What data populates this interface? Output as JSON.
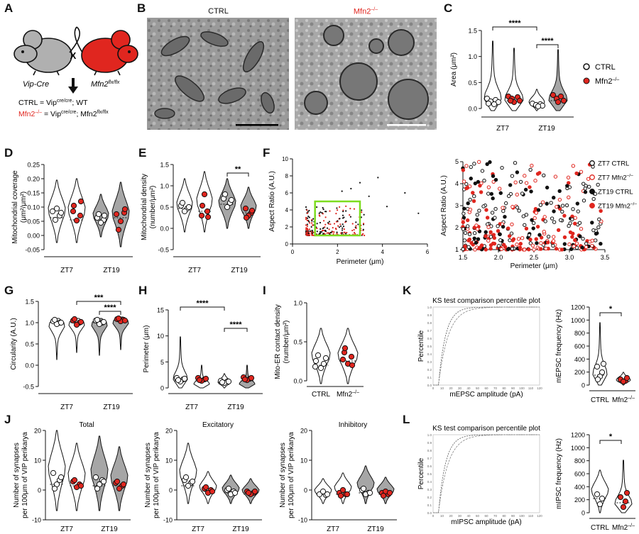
{
  "panel_labels": {
    "A": "A",
    "B": "B",
    "C": "C",
    "D": "D",
    "E": "E",
    "F": "F",
    "G": "G",
    "H": "H",
    "I": "I",
    "J": "J",
    "K": "K",
    "L": "L"
  },
  "panel_a": {
    "mouse_left_label": "Vip-Cre",
    "mouse_right_label": "Mfn2",
    "mouse_right_sup": "flx/flx",
    "cross": "X",
    "ctrl_line": "CTRL = Vip",
    "ctrl_sup": "cre/cre",
    "ctrl_rest": "; WT",
    "mfn_line_name": "Mfn2",
    "mfn_line_sup": "–/–",
    "mfn_line_eq": " = Vip",
    "mfn_line_sup2": "cre/cre",
    "mfn_line_rest": "; Mfn2",
    "mfn_line_sup3": "flx/flx"
  },
  "panel_b": {
    "ctrl_title": "CTRL",
    "mfn_title": "Mfn2",
    "mfn_sup": "–/–"
  },
  "colors": {
    "red": "#e0261f",
    "black": "#111111",
    "gray": "#a6a6a6",
    "green": "#7ddc1f",
    "light": "#cfcfcf"
  },
  "legend_c": {
    "ctrl": "CTRL",
    "mfn": "Mfn2",
    "mfn_sup": "–/–"
  },
  "legend_f": [
    "ZT7 CTRL",
    "ZT7 Mfn2",
    "ZT19 CTRL",
    "ZT19 Mfn2"
  ],
  "legend_f_sup": "–/–",
  "violin_panels": {
    "C": {
      "ylabel": "Area (μm²)",
      "ticks": [
        "1.5",
        "1.0",
        "0.5",
        "0.0"
      ],
      "groups": [
        "ZT7",
        "ZT19"
      ],
      "sig": [
        "****",
        "****"
      ]
    },
    "D": {
      "ylabel1": "Mitochondrial coverage",
      "ylabel2": "(μm²/μm²)",
      "ticks": [
        "0.25",
        "0.20",
        "0.15",
        "0.10",
        "0.05",
        "0.00",
        "-0.05"
      ],
      "groups": [
        "ZT7",
        "ZT19"
      ]
    },
    "E": {
      "ylabel1": "Mitochondrial density",
      "ylabel2": "(number/μm²)",
      "ticks": [
        "1.5",
        "1.0",
        "0.5",
        "0.0",
        "-0.5"
      ],
      "groups": [
        "ZT7",
        "ZT19"
      ],
      "sig": [
        "**"
      ]
    },
    "G": {
      "ylabel": "Circularity (A.U.)",
      "ticks": [
        "1.5",
        "1.0",
        "0.5",
        "0.0",
        "-0.5"
      ],
      "groups": [
        "ZT7",
        "ZT19"
      ],
      "sig": [
        "***",
        "****"
      ]
    },
    "H": {
      "ylabel": "Perimeter (μm)",
      "ticks": [
        "15",
        "10",
        "5",
        "0"
      ],
      "groups": [
        "ZT7",
        "ZT19"
      ],
      "sig": [
        "****",
        "****"
      ]
    },
    "I": {
      "ylabel1": "Mito-ER contact density",
      "ylabel2": "(number/μm²)",
      "ticks": [
        "1.0",
        "0.5",
        "0.0"
      ],
      "groups": [
        "CTRL",
        "Mfn2"
      ],
      "group2_sup": "–/–"
    },
    "J": {
      "titles": [
        "Total",
        "Excitatory",
        "Inhibitory"
      ],
      "ylabel1": "Number of synapses",
      "ylabel2": "per 100μm of VIP perikarya",
      "ticks": [
        "20",
        "10",
        "0",
        "-10"
      ],
      "groups": [
        "ZT7",
        "ZT19"
      ]
    },
    "K": {
      "ylabel": "mEPSC frequency (Hz)",
      "ticks": [
        "1200",
        "1000",
        "800",
        "600",
        "400",
        "200",
        "0"
      ],
      "groups": [
        "CTRL",
        "Mfn2"
      ],
      "group2_sup": "–/–",
      "sig": [
        "*"
      ]
    },
    "L": {
      "ylabel": "mIPSC frequency (Hz)",
      "ticks": [
        "1200",
        "1000",
        "800",
        "600",
        "400",
        "200",
        "0"
      ],
      "groups": [
        "CTRL",
        "Mfn2"
      ],
      "group2_sup": "–/–",
      "sig": [
        "*"
      ]
    }
  },
  "ks_plots": {
    "K": {
      "title": "KS test comparison percentile plot",
      "ylabel": "Percentile",
      "xlabel": "mEPSC amplitude (pA)",
      "yticks": [
        "1.0",
        "0.9",
        "0.8",
        "0.7",
        "0.6",
        "0.5",
        "0.4",
        "0.3",
        "0.2",
        "0.1",
        "0.0"
      ],
      "xticks": [
        "0",
        "10",
        "20",
        "30",
        "40",
        "50",
        "60",
        "70",
        "80",
        "90",
        "100",
        "110",
        "120"
      ]
    },
    "L": {
      "title": "KS test comparison percentile plot",
      "ylabel": "Percentile",
      "xlabel": "mIPSC amplitude (pA)",
      "yticks": [
        "1.0",
        "0.9",
        "0.8",
        "0.7",
        "0.6",
        "0.5",
        "0.4",
        "0.3",
        "0.2",
        "0.1",
        "0.0"
      ],
      "xticks": [
        "0",
        "10",
        "20",
        "30",
        "40",
        "50",
        "60",
        "70",
        "80",
        "90",
        "100",
        "110",
        "120"
      ]
    }
  },
  "chart_data": [
    {
      "type": "scatter",
      "panel": "F-left",
      "xlabel": "Perimeter (μm)",
      "ylabel": "Aspect Ratio (A.U.)",
      "xlim": [
        0,
        6
      ],
      "ylim": [
        0,
        10
      ],
      "xticks": [
        "0",
        "2",
        "4",
        "6"
      ],
      "yticks": [
        "0",
        "2",
        "4",
        "6",
        "8",
        "10"
      ],
      "highlight_box": {
        "x": [
          1.0,
          3.0
        ],
        "y": [
          1.0,
          5.0
        ]
      }
    },
    {
      "type": "scatter",
      "panel": "F-right",
      "xlabel": "Perimeter (μm)",
      "ylabel": "Aspect Ratio (A.U.)",
      "xlim": [
        1.5,
        3.5
      ],
      "ylim": [
        1,
        5
      ],
      "xticks": [
        "1.5",
        "2.0",
        "2.5",
        "3.0",
        "3.5"
      ],
      "yticks": [
        "1",
        "2",
        "3",
        "4",
        "5"
      ],
      "series": [
        "ZT7 CTRL",
        "ZT7 Mfn2–/–",
        "ZT19 CTRL",
        "ZT19 Mfn2–/–"
      ]
    }
  ]
}
